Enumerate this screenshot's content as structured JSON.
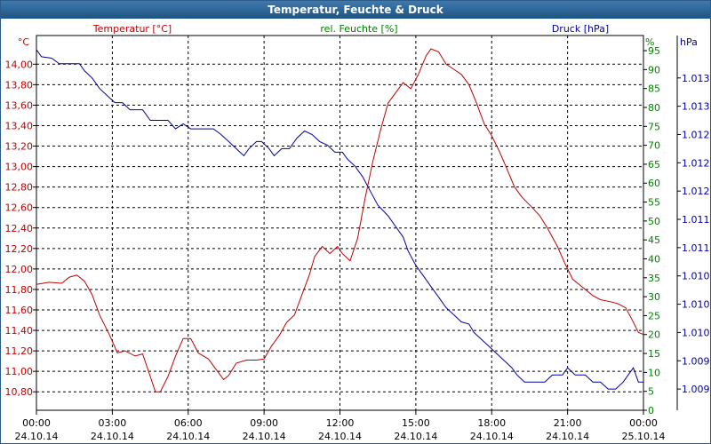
{
  "colors": {
    "temperature": "#c00000",
    "humidity": "#008000",
    "pressure": "#0000a0",
    "grid": "#000000"
  },
  "chart_data": {
    "type": "line",
    "title": "Temperatur, Feuchte & Druck",
    "series_labels": {
      "temperature": "Temperatur [°C]",
      "humidity": "rel. Feuchte [%]",
      "pressure": "Druck [hPa]"
    },
    "units": {
      "temperature": "°C",
      "humidity": "%",
      "pressure": "hPa"
    },
    "x_hours": [
      0,
      24
    ],
    "x_ticks": [
      {
        "h": 0,
        "time": "00:00",
        "date": "24.10.14"
      },
      {
        "h": 3,
        "time": "03:00",
        "date": "24.10.14"
      },
      {
        "h": 6,
        "time": "06:00",
        "date": "24.10.14"
      },
      {
        "h": 9,
        "time": "09:00",
        "date": "24.10.14"
      },
      {
        "h": 12,
        "time": "12:00",
        "date": "24.10.14"
      },
      {
        "h": 15,
        "time": "15:00",
        "date": "24.10.14"
      },
      {
        "h": 18,
        "time": "18:00",
        "date": "24.10.14"
      },
      {
        "h": 21,
        "time": "21:00",
        "date": "24.10.14"
      },
      {
        "h": 24,
        "time": "00:00",
        "date": "25.10.14"
      }
    ],
    "temp_ylim": [
      10.62,
      14.28
    ],
    "temp_ticks": [
      {
        "v": 10.8,
        "label": "10,80"
      },
      {
        "v": 11.0,
        "label": "11,00"
      },
      {
        "v": 11.2,
        "label": "11,20"
      },
      {
        "v": 11.4,
        "label": "11,40"
      },
      {
        "v": 11.6,
        "label": "11,60"
      },
      {
        "v": 11.8,
        "label": "11,80"
      },
      {
        "v": 12.0,
        "label": "12,00"
      },
      {
        "v": 12.2,
        "label": "12,20"
      },
      {
        "v": 12.4,
        "label": "12,40"
      },
      {
        "v": 12.6,
        "label": "12,60"
      },
      {
        "v": 12.8,
        "label": "12,80"
      },
      {
        "v": 13.0,
        "label": "13,00"
      },
      {
        "v": 13.2,
        "label": "13,20"
      },
      {
        "v": 13.4,
        "label": "13,40"
      },
      {
        "v": 13.6,
        "label": "13,60"
      },
      {
        "v": 13.8,
        "label": "13,80"
      },
      {
        "v": 14.0,
        "label": "14,00"
      }
    ],
    "hum_ylim": [
      0,
      99
    ],
    "hum_ticks": [
      {
        "v": 0,
        "label": "0"
      },
      {
        "v": 5,
        "label": "5"
      },
      {
        "v": 10,
        "label": "10"
      },
      {
        "v": 15,
        "label": "15"
      },
      {
        "v": 20,
        "label": "20"
      },
      {
        "v": 25,
        "label": "25"
      },
      {
        "v": 30,
        "label": "30"
      },
      {
        "v": 35,
        "label": "35"
      },
      {
        "v": 40,
        "label": "40"
      },
      {
        "v": 45,
        "label": "45"
      },
      {
        "v": 50,
        "label": "50"
      },
      {
        "v": 55,
        "label": "55"
      },
      {
        "v": 60,
        "label": "60"
      },
      {
        "v": 65,
        "label": "65"
      },
      {
        "v": 70,
        "label": "70"
      },
      {
        "v": 75,
        "label": "75"
      },
      {
        "v": 80,
        "label": "80"
      },
      {
        "v": 85,
        "label": "85"
      },
      {
        "v": 90,
        "label": "90"
      },
      {
        "v": 95,
        "label": "95"
      }
    ],
    "press_ylim": [
      1008.5,
      1013.8
    ],
    "press_ticks": [
      {
        "v": 1008.8,
        "label": "1.009"
      },
      {
        "v": 1009.2,
        "label": "1.009"
      },
      {
        "v": 1009.6,
        "label": "1.010"
      },
      {
        "v": 1010.0,
        "label": "1.010"
      },
      {
        "v": 1010.4,
        "label": "1.010"
      },
      {
        "v": 1010.8,
        "label": "1.011"
      },
      {
        "v": 1011.2,
        "label": "1.011"
      },
      {
        "v": 1011.6,
        "label": "1.012"
      },
      {
        "v": 1012.0,
        "label": "1.012"
      },
      {
        "v": 1012.4,
        "label": "1.012"
      },
      {
        "v": 1012.8,
        "label": "1.013"
      },
      {
        "v": 1013.2,
        "label": "1.013"
      }
    ],
    "temperature": [
      [
        0.0,
        11.85
      ],
      [
        0.5,
        11.87
      ],
      [
        1.0,
        11.86
      ],
      [
        1.3,
        11.92
      ],
      [
        1.6,
        11.94
      ],
      [
        1.9,
        11.88
      ],
      [
        2.2,
        11.75
      ],
      [
        2.5,
        11.55
      ],
      [
        2.9,
        11.35
      ],
      [
        3.2,
        11.18
      ],
      [
        3.5,
        11.2
      ],
      [
        3.9,
        11.15
      ],
      [
        4.2,
        11.17
      ],
      [
        4.5,
        10.95
      ],
      [
        4.7,
        10.8
      ],
      [
        4.9,
        10.8
      ],
      [
        5.2,
        10.95
      ],
      [
        5.5,
        11.15
      ],
      [
        5.8,
        11.32
      ],
      [
        6.1,
        11.32
      ],
      [
        6.4,
        11.18
      ],
      [
        6.8,
        11.12
      ],
      [
        7.1,
        11.02
      ],
      [
        7.4,
        10.92
      ],
      [
        7.6,
        10.96
      ],
      [
        7.9,
        11.08
      ],
      [
        8.3,
        11.11
      ],
      [
        8.7,
        11.11
      ],
      [
        9.0,
        11.12
      ],
      [
        9.3,
        11.25
      ],
      [
        9.6,
        11.35
      ],
      [
        9.9,
        11.48
      ],
      [
        10.2,
        11.55
      ],
      [
        10.5,
        11.75
      ],
      [
        10.8,
        11.95
      ],
      [
        11.0,
        12.12
      ],
      [
        11.3,
        12.22
      ],
      [
        11.6,
        12.15
      ],
      [
        11.9,
        12.22
      ],
      [
        12.1,
        12.15
      ],
      [
        12.4,
        12.08
      ],
      [
        12.7,
        12.3
      ],
      [
        13.0,
        12.7
      ],
      [
        13.3,
        13.05
      ],
      [
        13.6,
        13.35
      ],
      [
        13.9,
        13.62
      ],
      [
        14.2,
        13.72
      ],
      [
        14.5,
        13.82
      ],
      [
        14.8,
        13.76
      ],
      [
        15.1,
        13.9
      ],
      [
        15.4,
        14.08
      ],
      [
        15.6,
        14.15
      ],
      [
        15.9,
        14.12
      ],
      [
        16.2,
        14.0
      ],
      [
        16.5,
        13.95
      ],
      [
        16.8,
        13.9
      ],
      [
        17.1,
        13.8
      ],
      [
        17.4,
        13.62
      ],
      [
        17.7,
        13.42
      ],
      [
        18.0,
        13.3
      ],
      [
        18.3,
        13.15
      ],
      [
        18.6,
        12.98
      ],
      [
        18.9,
        12.8
      ],
      [
        19.2,
        12.7
      ],
      [
        19.6,
        12.6
      ],
      [
        19.9,
        12.52
      ],
      [
        20.2,
        12.4
      ],
      [
        20.6,
        12.22
      ],
      [
        20.9,
        12.05
      ],
      [
        21.2,
        11.9
      ],
      [
        21.6,
        11.82
      ],
      [
        22.0,
        11.74
      ],
      [
        22.3,
        11.7
      ],
      [
        22.7,
        11.68
      ],
      [
        23.0,
        11.66
      ],
      [
        23.3,
        11.62
      ],
      [
        23.6,
        11.48
      ],
      [
        23.8,
        11.38
      ],
      [
        24.0,
        11.36
      ]
    ],
    "pressure": [
      [
        0.0,
        1013.6
      ],
      [
        0.2,
        1013.5
      ],
      [
        0.6,
        1013.48
      ],
      [
        0.9,
        1013.4
      ],
      [
        1.3,
        1013.4
      ],
      [
        1.7,
        1013.4
      ],
      [
        1.9,
        1013.3
      ],
      [
        2.2,
        1013.2
      ],
      [
        2.5,
        1013.05
      ],
      [
        2.8,
        1012.95
      ],
      [
        3.1,
        1012.85
      ],
      [
        3.4,
        1012.85
      ],
      [
        3.7,
        1012.75
      ],
      [
        4.2,
        1012.75
      ],
      [
        4.5,
        1012.6
      ],
      [
        4.9,
        1012.6
      ],
      [
        5.2,
        1012.6
      ],
      [
        5.5,
        1012.48
      ],
      [
        5.8,
        1012.55
      ],
      [
        6.1,
        1012.48
      ],
      [
        6.5,
        1012.48
      ],
      [
        7.0,
        1012.48
      ],
      [
        7.3,
        1012.4
      ],
      [
        7.6,
        1012.3
      ],
      [
        7.9,
        1012.2
      ],
      [
        8.2,
        1012.1
      ],
      [
        8.4,
        1012.2
      ],
      [
        8.7,
        1012.3
      ],
      [
        8.9,
        1012.3
      ],
      [
        9.2,
        1012.2
      ],
      [
        9.4,
        1012.1
      ],
      [
        9.7,
        1012.2
      ],
      [
        10.0,
        1012.2
      ],
      [
        10.3,
        1012.35
      ],
      [
        10.6,
        1012.45
      ],
      [
        10.9,
        1012.4
      ],
      [
        11.2,
        1012.3
      ],
      [
        11.5,
        1012.25
      ],
      [
        11.8,
        1012.15
      ],
      [
        12.1,
        1012.15
      ],
      [
        12.3,
        1012.05
      ],
      [
        12.6,
        1011.95
      ],
      [
        12.9,
        1011.8
      ],
      [
        13.2,
        1011.6
      ],
      [
        13.5,
        1011.4
      ],
      [
        13.9,
        1011.25
      ],
      [
        14.2,
        1011.1
      ],
      [
        14.5,
        1010.95
      ],
      [
        14.7,
        1010.75
      ],
      [
        15.0,
        1010.55
      ],
      [
        15.3,
        1010.4
      ],
      [
        15.6,
        1010.25
      ],
      [
        15.9,
        1010.1
      ],
      [
        16.2,
        1009.95
      ],
      [
        16.5,
        1009.85
      ],
      [
        16.8,
        1009.75
      ],
      [
        17.1,
        1009.72
      ],
      [
        17.3,
        1009.6
      ],
      [
        17.6,
        1009.5
      ],
      [
        17.9,
        1009.4
      ],
      [
        18.2,
        1009.3
      ],
      [
        18.5,
        1009.2
      ],
      [
        18.8,
        1009.1
      ],
      [
        19.0,
        1009.0
      ],
      [
        19.3,
        1008.9
      ],
      [
        19.7,
        1008.9
      ],
      [
        20.1,
        1008.9
      ],
      [
        20.4,
        1009.0
      ],
      [
        20.8,
        1009.0
      ],
      [
        21.0,
        1009.1
      ],
      [
        21.3,
        1009.0
      ],
      [
        21.7,
        1009.0
      ],
      [
        22.0,
        1008.9
      ],
      [
        22.3,
        1008.9
      ],
      [
        22.6,
        1008.8
      ],
      [
        22.9,
        1008.8
      ],
      [
        23.2,
        1008.9
      ],
      [
        23.4,
        1009.0
      ],
      [
        23.6,
        1009.1
      ],
      [
        23.8,
        1008.9
      ],
      [
        24.0,
        1008.9
      ]
    ]
  }
}
